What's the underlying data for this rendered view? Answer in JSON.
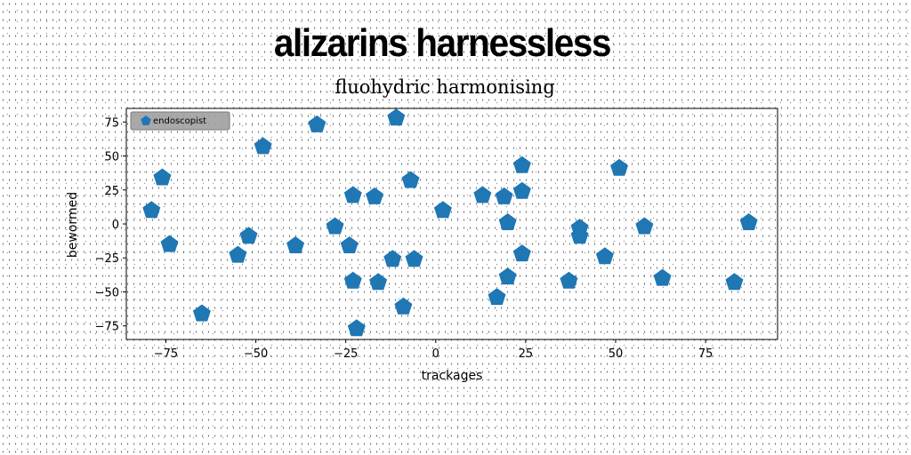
{
  "chart_data": {
    "type": "scatter",
    "title": "alizarins harnessless",
    "subtitle": "fluohydric harmonising",
    "xlabel": "trackages",
    "ylabel": "bewormed",
    "xlim": [
      -86,
      95
    ],
    "ylim": [
      -85,
      85
    ],
    "xticks": [
      -75,
      -50,
      -25,
      0,
      25,
      50,
      75
    ],
    "yticks": [
      -75,
      -50,
      -25,
      0,
      25,
      50,
      75
    ],
    "xtick_labels": [
      "−75",
      "−50",
      "−25",
      "0",
      "25",
      "50",
      "75"
    ],
    "ytick_labels": [
      "−75",
      "−50",
      "−25",
      "0",
      "25",
      "50",
      "75"
    ],
    "grid": false,
    "legend_position": "top-left",
    "marker": "pentagon",
    "color": "#1f77b4",
    "series": [
      {
        "name": "endoscopist",
        "x": [
          -79,
          -76,
          -74,
          -65,
          -55,
          -52,
          -48,
          -39,
          -33,
          -28,
          -24,
          -23,
          -23,
          -22,
          -17,
          -16,
          -12,
          -11,
          -9,
          -7,
          -6,
          2,
          13,
          17,
          19,
          20,
          20,
          24,
          24,
          24,
          37,
          40,
          40,
          47,
          51,
          58,
          63,
          83,
          87
        ],
        "y": [
          10,
          34,
          -15,
          -66,
          -23,
          -9,
          57,
          -16,
          73,
          -2,
          -16,
          21,
          -42,
          -77,
          20,
          -43,
          -26,
          78,
          -61,
          32,
          -26,
          10,
          21,
          -54,
          20,
          1,
          -39,
          43,
          24,
          -22,
          -42,
          -3,
          -9,
          -24,
          41,
          -2,
          -40,
          -43,
          1
        ]
      }
    ]
  }
}
